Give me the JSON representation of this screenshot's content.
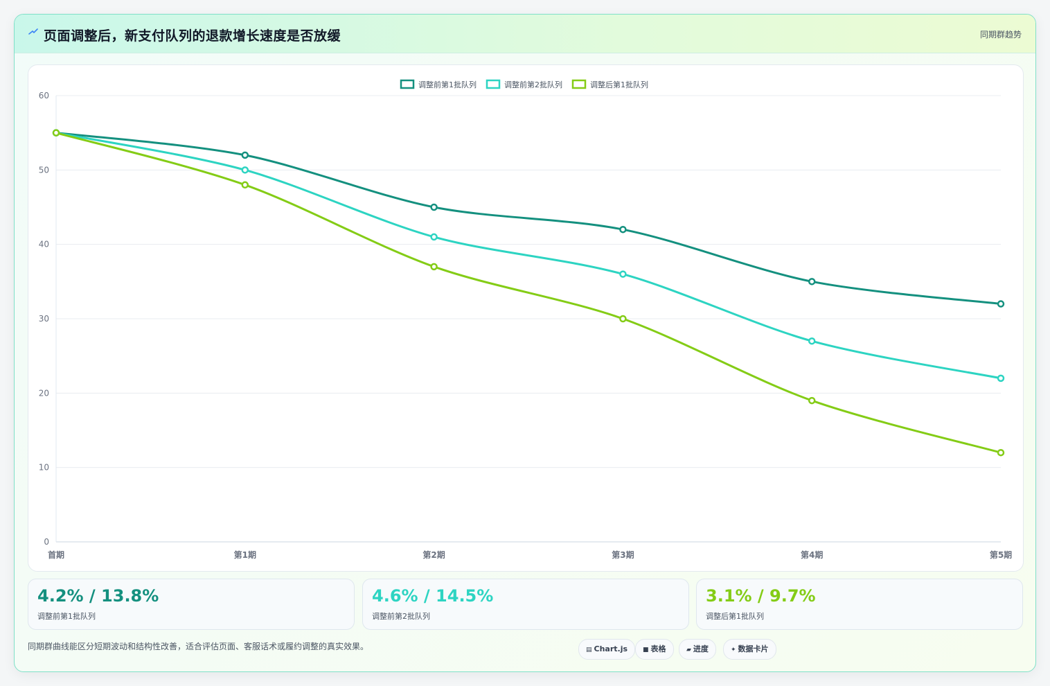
{
  "header": {
    "title": "页面调整后，新支付队列的退款增长速度是否放缓",
    "tag": "同期群趋势"
  },
  "colors": {
    "series1": "#14907f",
    "series2": "#2dd4c2",
    "series3": "#84cc16"
  },
  "chart_data": {
    "type": "line",
    "categories": [
      "首期",
      "第1期",
      "第2期",
      "第3期",
      "第4期",
      "第5期"
    ],
    "series": [
      {
        "name": "调整前第1批队列",
        "values": [
          55,
          52,
          45,
          42,
          35,
          32
        ],
        "color": "#14907f"
      },
      {
        "name": "调整前第2批队列",
        "values": [
          55,
          50,
          41,
          36,
          27,
          22
        ],
        "color": "#2dd4c2"
      },
      {
        "name": "调整后第1批队列",
        "values": [
          55,
          48,
          37,
          30,
          19,
          12
        ],
        "color": "#84cc16"
      }
    ],
    "ylim": [
      0,
      60
    ],
    "yticks": [
      0,
      10,
      20,
      30,
      40,
      50,
      60
    ],
    "grid": true,
    "legend": "top-center",
    "xlabel": "",
    "ylabel": ""
  },
  "stats": [
    {
      "value": "4.2% / 13.8%",
      "label": "调整前第1批队列",
      "color": "#14907f"
    },
    {
      "value": "4.6% / 14.5%",
      "label": "调整前第2批队列",
      "color": "#2dd4c2"
    },
    {
      "value": "3.1% / 9.7%",
      "label": "调整后第1批队列",
      "color": "#84cc16"
    }
  ],
  "footnote": "同期群曲线能区分短期波动和结构性改善，适合评估页面、客服话术或履约调整的真实效果。",
  "pills": [
    {
      "icon": "▤",
      "label": "Chart.js"
    },
    {
      "icon": "■",
      "label": "表格"
    },
    {
      "icon": "▰",
      "label": "进度"
    },
    {
      "icon": "✦",
      "label": "数据卡片"
    }
  ]
}
